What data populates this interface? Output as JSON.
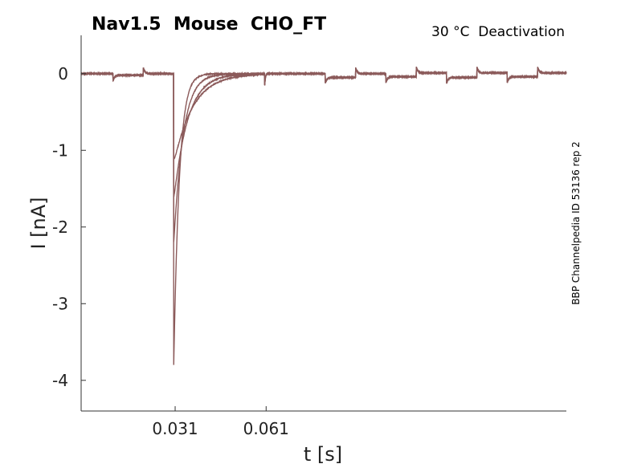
{
  "chart_data": {
    "type": "line",
    "title": "Nav1.5  Mouse  CHO_FT",
    "subtitle": "30 °C  Deactivation",
    "side_label": "BBP Channelpedia ID 53136 rep 2",
    "xlabel": "t [s]",
    "ylabel": "I [nA]",
    "xlim": [
      0,
      0.16
    ],
    "ylim": [
      -4.4,
      0.5
    ],
    "xticks": [
      0.031,
      0.061
    ],
    "xtick_labels": [
      "0.031",
      "0.061"
    ],
    "yticks": [
      0,
      -1,
      -2,
      -3,
      -4
    ],
    "ytick_labels": [
      "0",
      "-1",
      "-2",
      "-3",
      "-4"
    ],
    "grid": false,
    "line_color": "#8b5a5a",
    "baseline_steps": {
      "t": [
        0,
        0.0105,
        0.0205,
        0.0305,
        0.0605,
        0.0805,
        0.0905,
        0.1005,
        0.1105,
        0.1205,
        0.1305,
        0.1405,
        0.1505,
        0.16
      ],
      "i": [
        0,
        -0.02,
        0,
        0,
        0,
        -0.05,
        0,
        -0.04,
        0.01,
        -0.05,
        0.01,
        -0.04,
        0.01,
        0.01
      ]
    },
    "series": [
      {
        "peak_t": 0.0305,
        "peak": -3.95,
        "tau": 0.0018
      },
      {
        "peak_t": 0.0305,
        "peak": -2.3,
        "tau": 0.003
      },
      {
        "peak_t": 0.0305,
        "peak": -1.7,
        "tau": 0.0045
      },
      {
        "peak_t": 0.0305,
        "peak": -1.2,
        "tau": 0.0062
      }
    ]
  }
}
